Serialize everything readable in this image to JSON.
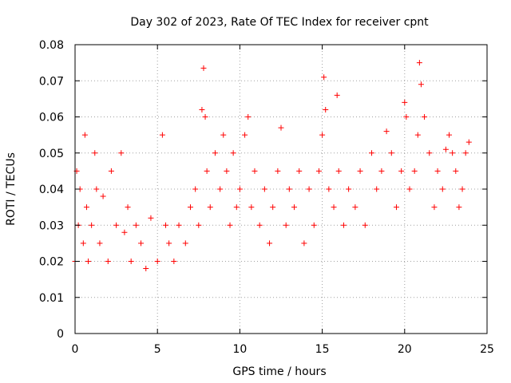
{
  "chart_data": {
    "type": "scatter",
    "title": "Day 302 of 2023, Rate Of TEC Index for receiver cpnt",
    "xlabel": "GPS time / hours",
    "ylabel": "ROTI / TECUs",
    "xlim": [
      0,
      25
    ],
    "ylim": [
      0,
      0.08
    ],
    "x_ticks": [
      0,
      5,
      10,
      15,
      20,
      25
    ],
    "x_tick_labels": [
      "0",
      "5",
      "10",
      "15",
      "20",
      "25"
    ],
    "y_ticks": [
      0,
      0.01,
      0.02,
      0.03,
      0.04,
      0.05,
      0.06,
      0.07,
      0.08
    ],
    "y_tick_labels": [
      "0",
      "0.01",
      "0.02",
      "0.03",
      "0.04",
      "0.05",
      "0.06",
      "0.07",
      "0.08"
    ],
    "grid": true,
    "marker": "plus",
    "series": [
      {
        "color": "#ff0000",
        "x": [
          0.0,
          0.1,
          0.2,
          0.3,
          0.5,
          0.6,
          0.7,
          0.8,
          1.0,
          1.2,
          1.3,
          1.5,
          1.7,
          2.0,
          2.2,
          2.5,
          2.8,
          3.0,
          3.2,
          3.4,
          3.7,
          4.0,
          4.3,
          4.6,
          5.0,
          5.3,
          5.5,
          5.7,
          6.0,
          6.3,
          6.7,
          7.0,
          7.3,
          7.5,
          7.7,
          7.8,
          7.9,
          8.0,
          8.2,
          8.5,
          8.8,
          9.0,
          9.2,
          9.4,
          9.6,
          9.8,
          10.0,
          10.3,
          10.5,
          10.7,
          10.9,
          11.2,
          11.5,
          11.8,
          12.0,
          12.3,
          12.5,
          12.8,
          13.0,
          13.3,
          13.6,
          13.9,
          14.2,
          14.5,
          14.8,
          15.0,
          15.1,
          15.2,
          15.4,
          15.7,
          15.9,
          16.0,
          16.3,
          16.6,
          17.0,
          17.3,
          17.6,
          18.0,
          18.3,
          18.6,
          18.9,
          19.2,
          19.5,
          19.8,
          20.0,
          20.1,
          20.3,
          20.6,
          20.8,
          20.9,
          21.0,
          21.2,
          21.5,
          21.8,
          22.0,
          22.3,
          22.5,
          22.7,
          22.9,
          23.1,
          23.3,
          23.5,
          23.7,
          23.9
        ],
        "y": [
          0.02,
          0.045,
          0.03,
          0.04,
          0.025,
          0.055,
          0.035,
          0.02,
          0.03,
          0.05,
          0.04,
          0.025,
          0.038,
          0.02,
          0.045,
          0.03,
          0.05,
          0.028,
          0.035,
          0.02,
          0.03,
          0.025,
          0.018,
          0.032,
          0.02,
          0.055,
          0.03,
          0.025,
          0.02,
          0.03,
          0.025,
          0.035,
          0.04,
          0.03,
          0.062,
          0.0735,
          0.06,
          0.045,
          0.035,
          0.05,
          0.04,
          0.055,
          0.045,
          0.03,
          0.05,
          0.035,
          0.04,
          0.055,
          0.06,
          0.035,
          0.045,
          0.03,
          0.04,
          0.025,
          0.035,
          0.045,
          0.057,
          0.03,
          0.04,
          0.035,
          0.045,
          0.025,
          0.04,
          0.03,
          0.045,
          0.055,
          0.071,
          0.062,
          0.04,
          0.035,
          0.066,
          0.045,
          0.03,
          0.04,
          0.035,
          0.045,
          0.03,
          0.05,
          0.04,
          0.045,
          0.056,
          0.05,
          0.035,
          0.045,
          0.064,
          0.06,
          0.04,
          0.045,
          0.055,
          0.075,
          0.069,
          0.06,
          0.05,
          0.035,
          0.045,
          0.04,
          0.051,
          0.055,
          0.05,
          0.045,
          0.035,
          0.04,
          0.05,
          0.053
        ]
      }
    ]
  }
}
